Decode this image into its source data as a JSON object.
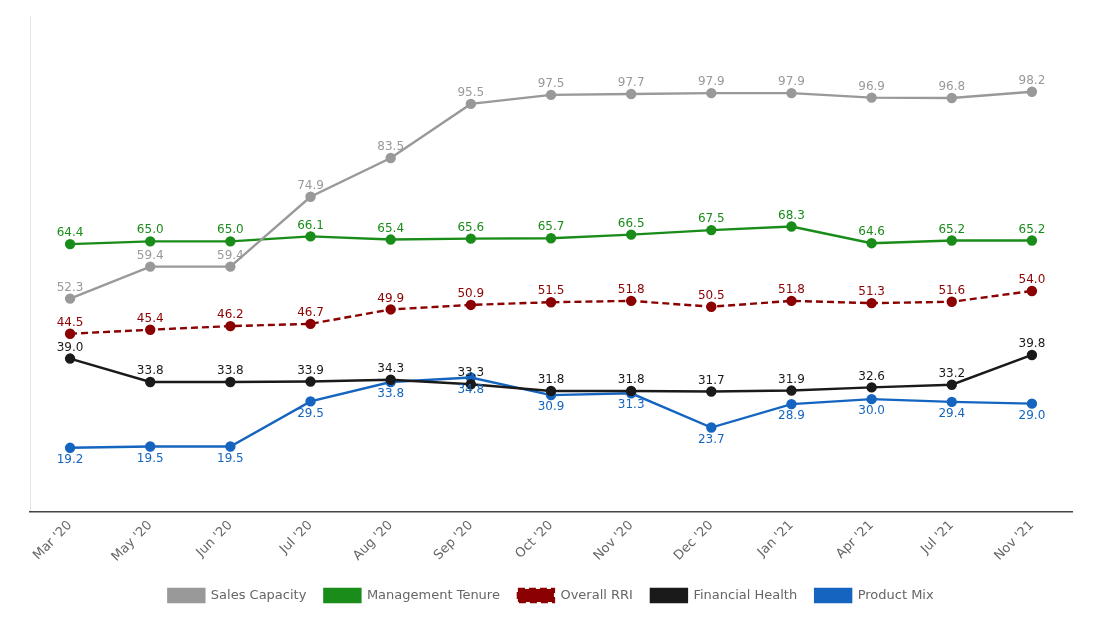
{
  "chart_data": {
    "type": "line",
    "categories": [
      "Mar '20",
      "May '20",
      "Jun '20",
      "Jul '20",
      "Aug '20",
      "Sep '20",
      "Oct '20",
      "Nov '20",
      "Dec '20",
      "Jan '21",
      "Apr '21",
      "Jul '21",
      "Nov '21"
    ],
    "series": [
      {
        "name": "Sales Capacity",
        "color": "#999999",
        "marker": "circle",
        "line_style": "solid",
        "values": [
          52.3,
          59.4,
          59.4,
          74.9,
          83.5,
          95.5,
          97.5,
          97.7,
          97.9,
          97.9,
          96.9,
          96.8,
          98.2
        ],
        "value_labels": [
          "52.3",
          "59.4",
          "59.4",
          "74.9",
          "83.5",
          "95.5",
          "97.5",
          "97.7",
          "97.9",
          "97.9",
          "96.9",
          "96.8",
          "98.2"
        ]
      },
      {
        "name": "Management Tenure",
        "color": "#1a8c1a",
        "marker": "circle",
        "line_style": "solid",
        "values": [
          64.4,
          65.0,
          65.0,
          66.1,
          65.4,
          65.6,
          65.7,
          66.5,
          67.5,
          68.3,
          64.6,
          65.2,
          65.2
        ],
        "value_labels": [
          "64.4",
          "65.0",
          "65.0",
          "66.1",
          "65.4",
          "65.6",
          "65.7",
          "66.5",
          "67.5",
          "68.3",
          "64.6",
          "65.2",
          "65.2"
        ]
      },
      {
        "name": "Overall RRI",
        "color": "#8B0000",
        "marker": "circle",
        "line_style": "dashed",
        "values": [
          44.5,
          45.4,
          46.2,
          46.7,
          49.9,
          50.9,
          51.5,
          51.8,
          50.5,
          51.8,
          51.3,
          51.6,
          54.0
        ],
        "value_labels": [
          "44.5",
          "45.4",
          "46.2",
          "46.7",
          "49.9",
          "50.9",
          "51.5",
          "51.8",
          "50.5",
          "51.8",
          "51.3",
          "51.6",
          "54.0"
        ]
      },
      {
        "name": "Financial Health",
        "color": "#1a1a1a",
        "marker": "circle",
        "line_style": "solid",
        "values": [
          39.0,
          33.8,
          33.8,
          33.9,
          34.3,
          33.3,
          31.8,
          31.8,
          31.7,
          31.9,
          32.6,
          33.2,
          39.8
        ],
        "value_labels": [
          "39.0",
          "33.8",
          "33.8",
          "33.9",
          "34.3",
          "33.3",
          "31.8",
          "31.8",
          "31.7",
          "31.9",
          "32.6",
          "33.2",
          "39.8"
        ]
      },
      {
        "name": "Product Mix",
        "color": "#1565C0",
        "marker": "circle",
        "line_style": "solid",
        "values": [
          19.2,
          19.5,
          19.5,
          29.5,
          33.8,
          34.8,
          30.9,
          31.3,
          23.7,
          28.9,
          30.0,
          29.4,
          29.0
        ],
        "value_labels": [
          "19.2",
          "19.5",
          "19.5",
          "29.5",
          "33.8",
          "34.8",
          "30.9",
          "31.3",
          "23.7",
          "28.9",
          "30.0",
          "29.4",
          "29.0"
        ]
      }
    ],
    "ylim": [
      5,
      115
    ],
    "grid": false,
    "legend": "bottom",
    "data_labels": true,
    "tick_labels": "x"
  }
}
